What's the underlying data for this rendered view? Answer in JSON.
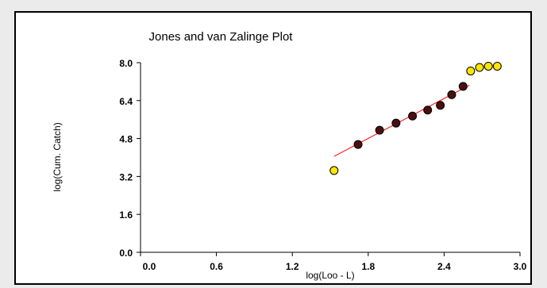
{
  "chart_data": {
    "type": "scatter",
    "title": "Jones and van Zalinge Plot",
    "xlabel": "log(Loo - L)",
    "ylabel": "log(Cum. Catch)",
    "xlim": [
      0.0,
      3.0
    ],
    "ylim": [
      0.0,
      8.0
    ],
    "x_ticks": [
      "0.0",
      "0.6",
      "1.2",
      "1.8",
      "2.4",
      "3.0"
    ],
    "y_ticks": [
      "0.0",
      "1.6",
      "3.2",
      "4.8",
      "6.4",
      "8.0"
    ],
    "grid": false,
    "series": [
      {
        "marker_color": "#4a0f0f",
        "points": [
          {
            "x": 1.72,
            "y": 4.55
          },
          {
            "x": 1.89,
            "y": 5.15
          },
          {
            "x": 2.02,
            "y": 5.45
          },
          {
            "x": 2.15,
            "y": 5.75
          },
          {
            "x": 2.27,
            "y": 6.0
          },
          {
            "x": 2.37,
            "y": 6.2
          },
          {
            "x": 2.46,
            "y": 6.65
          },
          {
            "x": 2.55,
            "y": 7.0
          }
        ]
      },
      {
        "marker_color": "#ffe600",
        "points": [
          {
            "x": 1.53,
            "y": 3.45
          },
          {
            "x": 2.61,
            "y": 7.65
          },
          {
            "x": 2.68,
            "y": 7.8
          },
          {
            "x": 2.75,
            "y": 7.85
          },
          {
            "x": 2.82,
            "y": 7.85
          }
        ]
      }
    ],
    "regression_line": {
      "color": "#ff0000",
      "x": [
        1.53,
        2.6
      ],
      "y": [
        4.05,
        7.05
      ]
    }
  }
}
